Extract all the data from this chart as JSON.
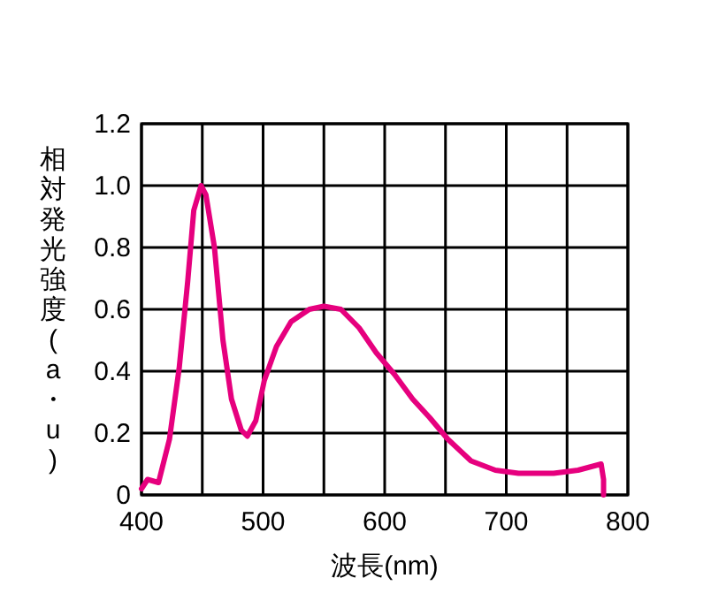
{
  "chart_data": {
    "type": "line",
    "xlabel": "波長(nm)",
    "ylabel": "相対発光強度(a・u)",
    "xlim": [
      400,
      800
    ],
    "xticks": [
      400,
      500,
      600,
      700,
      800
    ],
    "ylim": [
      0,
      1.2
    ],
    "yticks": [
      {
        "value": 0,
        "label": "0"
      },
      {
        "value": 0.2,
        "label": "0.2"
      },
      {
        "value": 0.4,
        "label": "0.4"
      },
      {
        "value": 0.6,
        "label": "0.6"
      },
      {
        "value": 0.8,
        "label": "0.8"
      },
      {
        "value": 1,
        "label": "1.0"
      },
      {
        "value": 1.2,
        "label": "1.2"
      }
    ],
    "grid": true,
    "series": [
      {
        "color": "#e6007e",
        "x": [
          400,
          405,
          414,
          423,
          431,
          438,
          443,
          449,
          453,
          460,
          467,
          474,
          482,
          487,
          494,
          501,
          511,
          523,
          538,
          550,
          564,
          579,
          593,
          608,
          623,
          637,
          652,
          671,
          691,
          710,
          739,
          759,
          778,
          780,
          780
        ],
        "values": [
          0.02,
          0.05,
          0.04,
          0.18,
          0.41,
          0.69,
          0.92,
          1.0,
          0.97,
          0.8,
          0.5,
          0.31,
          0.21,
          0.19,
          0.24,
          0.37,
          0.48,
          0.56,
          0.6,
          0.61,
          0.6,
          0.54,
          0.46,
          0.39,
          0.31,
          0.25,
          0.18,
          0.11,
          0.08,
          0.07,
          0.07,
          0.08,
          0.1,
          0.05,
          0
        ]
      }
    ]
  }
}
